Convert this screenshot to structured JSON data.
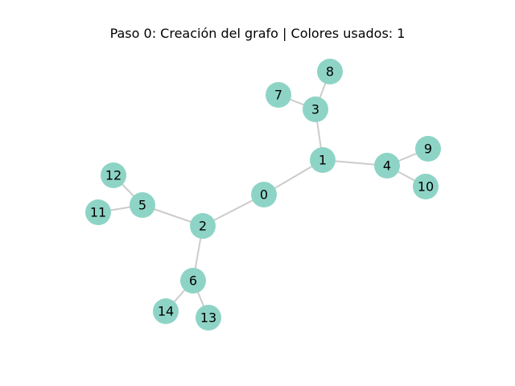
{
  "title": "Paso 0: Creación del grafo | Colores usados: 1",
  "colors": {
    "node_fill": "#8ed4c6",
    "edge": "#cccccc",
    "label": "#000000"
  },
  "graph": {
    "nodes": [
      {
        "id": "0",
        "label": "0"
      },
      {
        "id": "1",
        "label": "1"
      },
      {
        "id": "2",
        "label": "2"
      },
      {
        "id": "3",
        "label": "3"
      },
      {
        "id": "4",
        "label": "4"
      },
      {
        "id": "5",
        "label": "5"
      },
      {
        "id": "6",
        "label": "6"
      },
      {
        "id": "7",
        "label": "7"
      },
      {
        "id": "8",
        "label": "8"
      },
      {
        "id": "9",
        "label": "9"
      },
      {
        "id": "10",
        "label": "10"
      },
      {
        "id": "11",
        "label": "11"
      },
      {
        "id": "12",
        "label": "12"
      },
      {
        "id": "13",
        "label": "13"
      },
      {
        "id": "14",
        "label": "14"
      }
    ],
    "edges": [
      [
        "0",
        "1"
      ],
      [
        "0",
        "2"
      ],
      [
        "1",
        "3"
      ],
      [
        "1",
        "4"
      ],
      [
        "2",
        "5"
      ],
      [
        "2",
        "6"
      ],
      [
        "3",
        "7"
      ],
      [
        "3",
        "8"
      ],
      [
        "4",
        "9"
      ],
      [
        "4",
        "10"
      ],
      [
        "5",
        "11"
      ],
      [
        "5",
        "12"
      ],
      [
        "6",
        "13"
      ],
      [
        "6",
        "14"
      ]
    ]
  }
}
